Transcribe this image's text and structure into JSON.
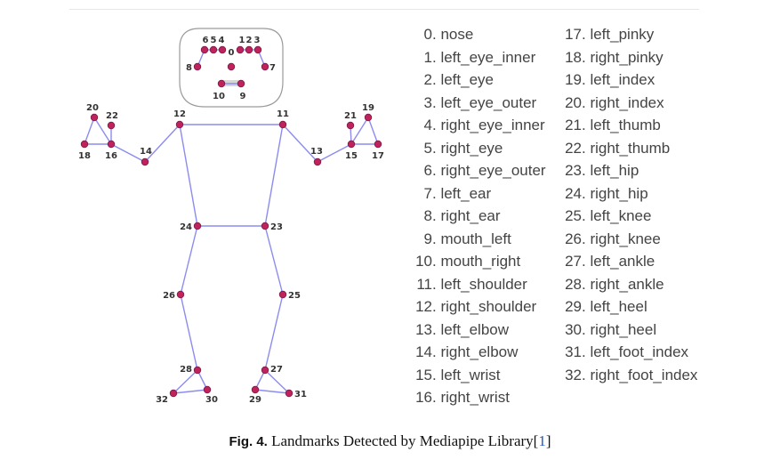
{
  "landmarks": [
    {
      "id": "0",
      "name": "nose"
    },
    {
      "id": "1",
      "name": "left_eye_inner"
    },
    {
      "id": "2",
      "name": "left_eye"
    },
    {
      "id": "3",
      "name": "left_eye_outer"
    },
    {
      "id": "4",
      "name": "right_eye_inner"
    },
    {
      "id": "5",
      "name": "right_eye"
    },
    {
      "id": "6",
      "name": "right_eye_outer"
    },
    {
      "id": "7",
      "name": "left_ear"
    },
    {
      "id": "8",
      "name": "right_ear"
    },
    {
      "id": "9",
      "name": "mouth_left"
    },
    {
      "id": "10",
      "name": "mouth_right"
    },
    {
      "id": "11",
      "name": "left_shoulder"
    },
    {
      "id": "12",
      "name": "right_shoulder"
    },
    {
      "id": "13",
      "name": "left_elbow"
    },
    {
      "id": "14",
      "name": "right_elbow"
    },
    {
      "id": "15",
      "name": "left_wrist"
    },
    {
      "id": "16",
      "name": "right_wrist"
    },
    {
      "id": "17",
      "name": "left_pinky"
    },
    {
      "id": "18",
      "name": "right_pinky"
    },
    {
      "id": "19",
      "name": "left_index"
    },
    {
      "id": "20",
      "name": "right_index"
    },
    {
      "id": "21",
      "name": "left_thumb"
    },
    {
      "id": "22",
      "name": "right_thumb"
    },
    {
      "id": "23",
      "name": "left_hip"
    },
    {
      "id": "24",
      "name": "right_hip"
    },
    {
      "id": "25",
      "name": "left_knee"
    },
    {
      "id": "26",
      "name": "right_knee"
    },
    {
      "id": "27",
      "name": "left_ankle"
    },
    {
      "id": "28",
      "name": "right_ankle"
    },
    {
      "id": "29",
      "name": "left_heel"
    },
    {
      "id": "30",
      "name": "right_heel"
    },
    {
      "id": "31",
      "name": "left_foot_index"
    },
    {
      "id": "32",
      "name": "right_foot_index"
    }
  ],
  "caption": {
    "label": "Fig. 4.",
    "text": "Landmarks Detected by Mediapipe Library",
    "citation": "1"
  },
  "colors": {
    "point": "#c0235b",
    "point_stroke": "#7a1d4a",
    "connection": "#8c8cf0",
    "face_outline": "#9a9a9a"
  }
}
